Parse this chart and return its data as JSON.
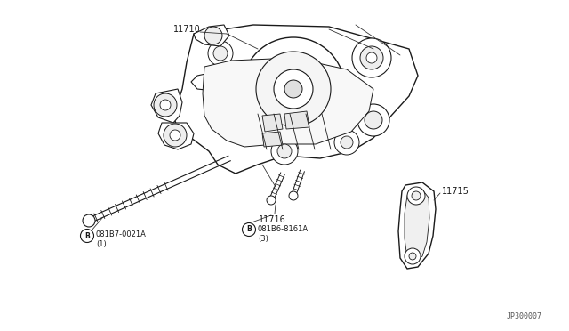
{
  "bg_color": "#ffffff",
  "line_color": "#1a1a1a",
  "diagram_id": "JP300007",
  "label_11710": "11710",
  "label_11715": "11715",
  "label_11716": "11716",
  "bolt1_partnum": "081B7-0021A",
  "bolt1_qty": "1",
  "bolt2_partnum": "081B6-8161A",
  "bolt2_qty": "3",
  "font_size_label": 7.0,
  "font_size_id": 6.0
}
